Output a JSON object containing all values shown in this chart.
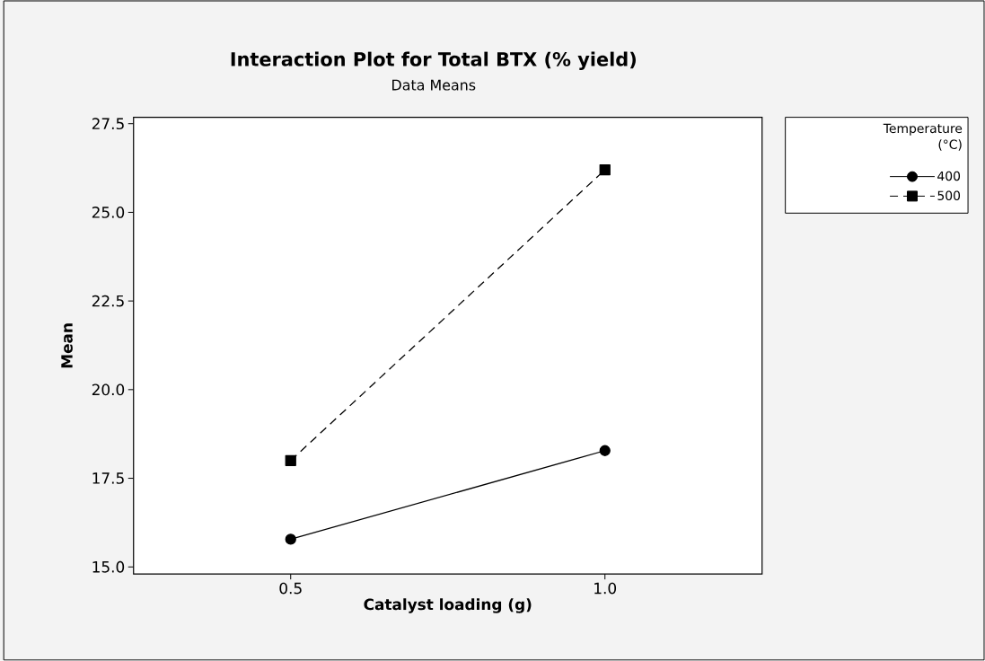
{
  "chart_data": {
    "type": "line",
    "title": "Interaction Plot for Total BTX (% yield)",
    "subtitle": "Data Means",
    "xlabel": "Catalyst loading (g)",
    "ylabel": "Mean",
    "legend_title": "Temperature (°C)",
    "x": [
      0.5,
      1.0
    ],
    "series": [
      {
        "name": "400",
        "color": "#000000",
        "values": [
          15.78,
          18.28
        ],
        "marker": "circle",
        "line_style": "solid"
      },
      {
        "name": "500",
        "color": "#000000",
        "values": [
          18.0,
          26.2
        ],
        "marker": "square",
        "line_style": "dashed"
      }
    ],
    "xlim": [
      0.25,
      1.25
    ],
    "xticks": [
      {
        "value": 0.5,
        "label": "0.5"
      },
      {
        "value": 1.0,
        "label": "1.0"
      }
    ],
    "ylim": [
      14.8,
      27.68
    ],
    "yticks": [
      {
        "value": 15.0,
        "label": "15.0"
      },
      {
        "value": 17.5,
        "label": "17.5"
      },
      {
        "value": 20.0,
        "label": "20.0"
      },
      {
        "value": 22.5,
        "label": "22.5"
      },
      {
        "value": 25.0,
        "label": "25.0"
      },
      {
        "value": 27.5,
        "label": "27.5"
      }
    ],
    "grid": false,
    "legend": "top right"
  }
}
